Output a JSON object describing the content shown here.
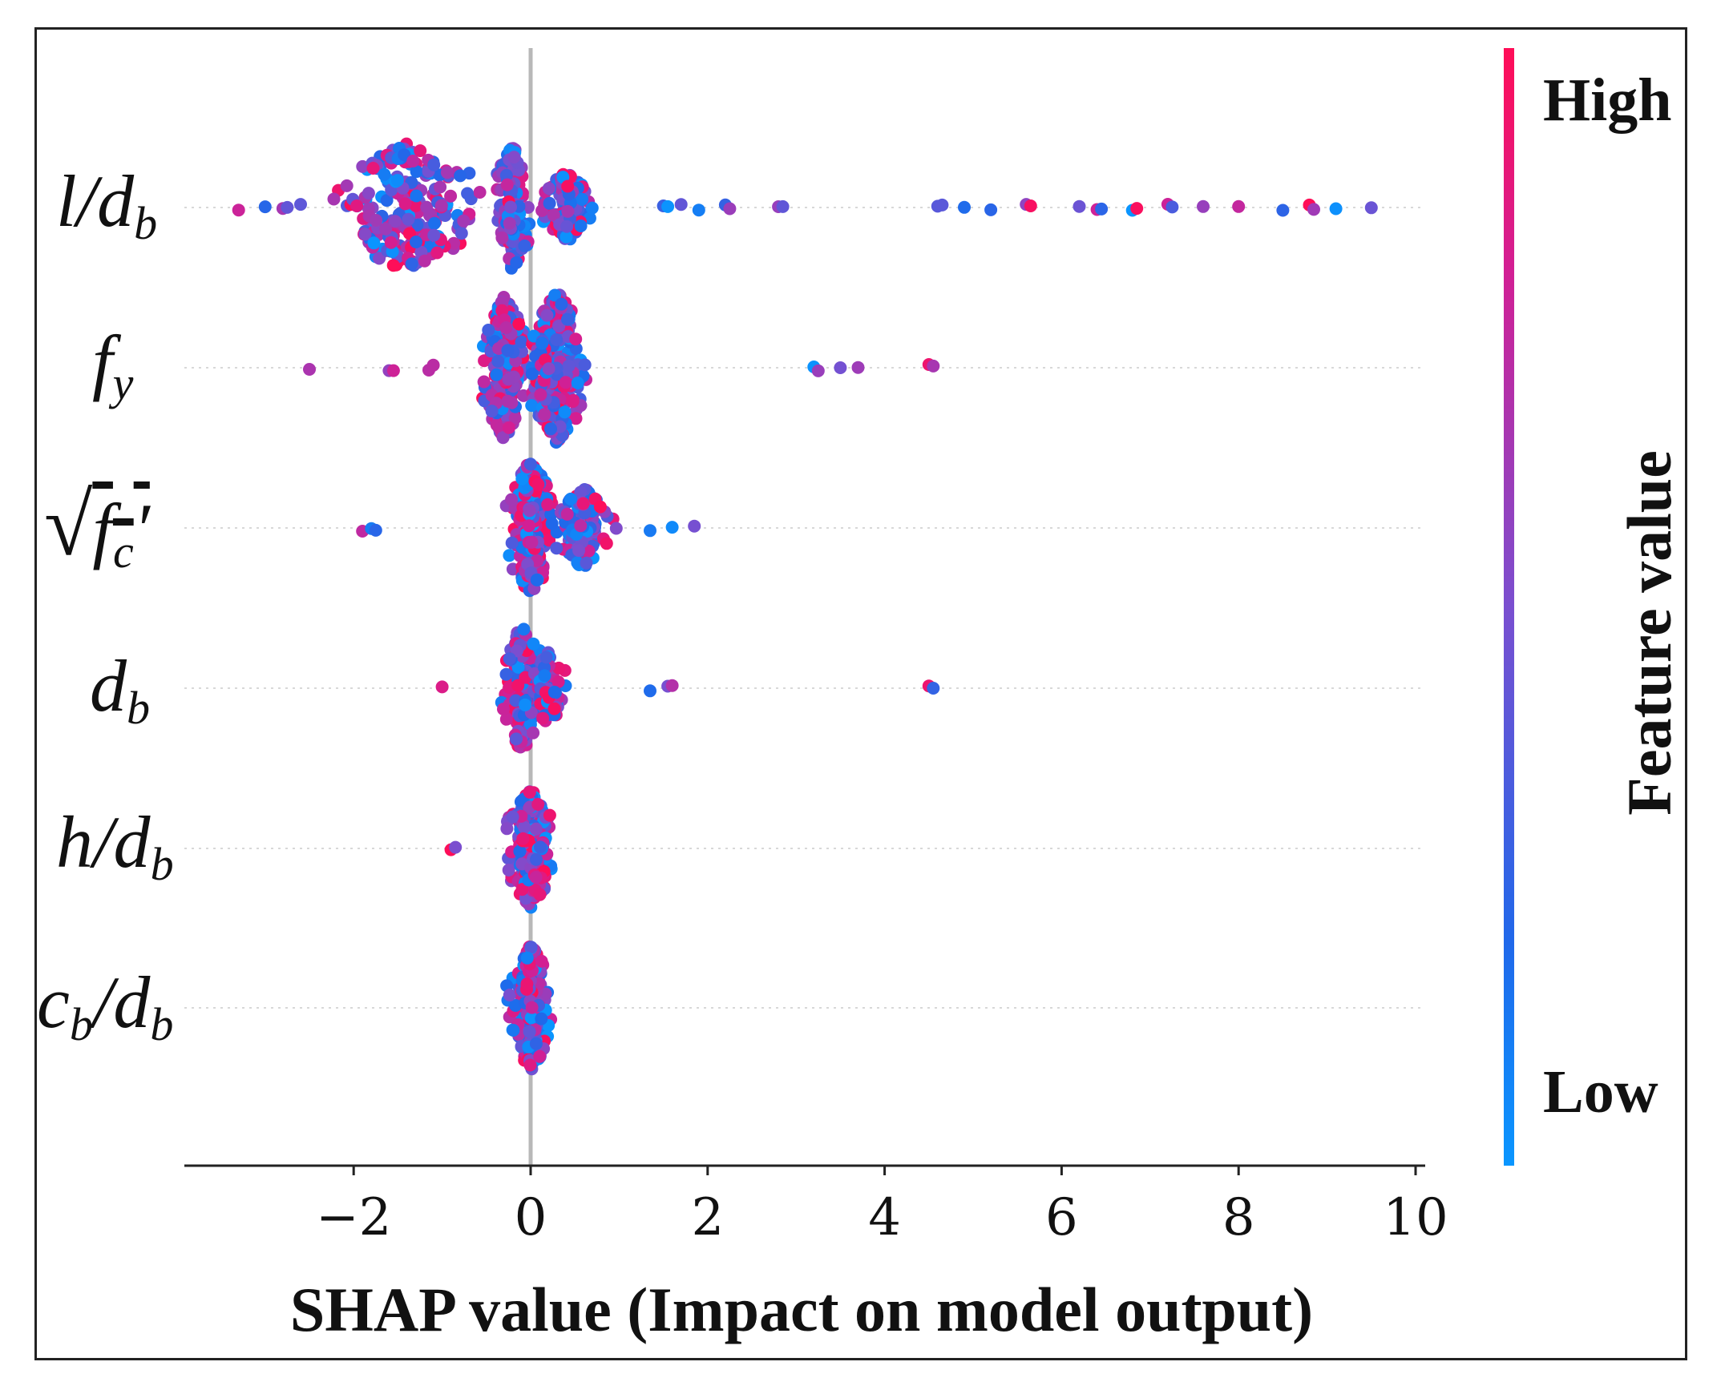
{
  "chart_data": {
    "type": "scatter",
    "subtype": "shap-beeswarm",
    "xlabel": "SHAP value (Impact on model output)",
    "x_ticks": [
      -2,
      0,
      2,
      4,
      6,
      8,
      10
    ],
    "x_tick_labels": [
      "−2",
      "0",
      "2",
      "4",
      "6",
      "8",
      "10"
    ],
    "xlim": [
      -3.9,
      10.2
    ],
    "zero_line": 0,
    "features": [
      {
        "label_main": "l/d",
        "label_sub": "b",
        "name": "l/d_b"
      },
      {
        "label_main": "f",
        "label_sub": "y",
        "name": "f_y"
      },
      {
        "label_main": "√f",
        "label_sub": "c",
        "label_suffix": "′",
        "name": "sqrt(f_c')"
      },
      {
        "label_main": "d",
        "label_sub": "b",
        "name": "d_b"
      },
      {
        "label_main": "h/d",
        "label_sub": "b",
        "name": "h/d_b"
      },
      {
        "label_main": "c",
        "label_sub": "b",
        "label_mid": "/d",
        "label_sub2": "b",
        "name": "c_b/d_b"
      }
    ],
    "series": [
      {
        "feature": "l/d_b",
        "outliers": [
          -3.3,
          -3.0,
          -2.8,
          -2.6,
          1.5,
          1.7,
          1.9,
          2.2,
          2.8,
          4.6,
          4.9,
          5.2,
          5.6,
          6.2,
          6.4,
          6.8,
          7.2,
          7.6,
          8.0,
          8.5,
          8.8,
          9.1,
          9.5
        ],
        "cluster_centers": [
          -1.4,
          -0.2,
          0.4
        ],
        "cluster_spread": [
          1.2,
          0.3,
          0.4
        ]
      },
      {
        "feature": "f_y",
        "outliers": [
          -2.5,
          -1.6,
          -1.15,
          3.2,
          3.5,
          3.7,
          4.5
        ],
        "cluster_centers": [
          -0.3,
          0.3
        ],
        "cluster_spread": [
          0.4,
          0.5
        ]
      },
      {
        "feature": "sqrt(f_c')",
        "outliers": [
          -1.9,
          -1.8,
          1.35,
          1.6,
          1.85
        ],
        "cluster_centers": [
          0.0,
          0.6
        ],
        "cluster_spread": [
          0.4,
          0.5
        ]
      },
      {
        "feature": "d_b",
        "outliers": [
          -1.0,
          1.35,
          1.55,
          4.5
        ],
        "cluster_centers": [
          -0.1,
          0.2
        ],
        "cluster_spread": [
          0.4,
          0.3
        ]
      },
      {
        "feature": "h/d_b",
        "outliers": [
          -0.9
        ],
        "cluster_centers": [
          0.0
        ],
        "cluster_spread": [
          0.4
        ]
      },
      {
        "feature": "c_b/d_b",
        "outliers": [],
        "cluster_centers": [
          0.0
        ],
        "cluster_spread": [
          0.35
        ]
      }
    ],
    "colorbar": {
      "label": "Feature value",
      "high_label": "High",
      "low_label": "Low",
      "high_color": "#ff0d57",
      "low_color": "#1e88e5"
    }
  }
}
